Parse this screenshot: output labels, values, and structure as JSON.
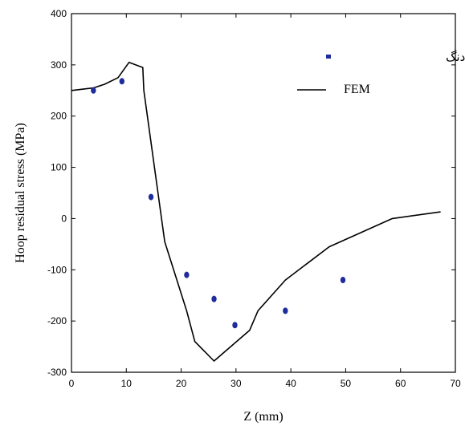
{
  "chart_data": {
    "type": "scatter",
    "xlabel": "Z (mm)",
    "ylabel": "Hoop residual stress (MPa)",
    "xlim": [
      0,
      70
    ],
    "ylim": [
      -300,
      400
    ],
    "xticks": [
      "0",
      "10",
      "20",
      "30",
      "40",
      "50",
      "60",
      "70"
    ],
    "yticks": [
      "-300",
      "-200",
      "-100",
      "0",
      "100",
      "200",
      "300",
      "400"
    ],
    "legend_position": "top-right",
    "series": [
      {
        "name": "نتایج تجربی دنگ",
        "kind": "scatter",
        "color": "#1f2d9c",
        "x": [
          4,
          9.2,
          14.5,
          21,
          26,
          29.8,
          39,
          49.5
        ],
        "y": [
          250,
          268,
          42,
          -110,
          -157,
          -208,
          -180,
          -120
        ]
      },
      {
        "name": "FEM",
        "kind": "line",
        "color": "#000000",
        "x": [
          0,
          4,
          6,
          8.5,
          10.5,
          13,
          13.2,
          17,
          21,
          22.5,
          26,
          32.5,
          34,
          39,
          47,
          58.5,
          67.3
        ],
        "y": [
          250,
          255,
          262,
          275,
          305,
          295,
          250,
          -45,
          -180,
          -240,
          -278,
          -218,
          -180,
          -120,
          -55,
          0,
          13
        ]
      }
    ]
  }
}
